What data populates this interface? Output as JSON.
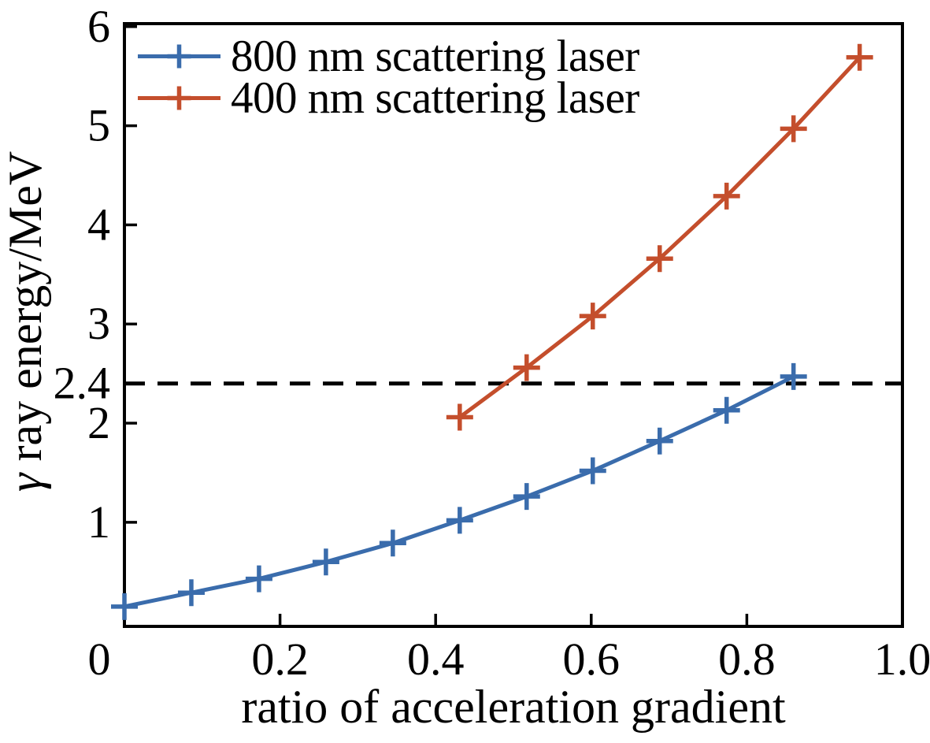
{
  "figure": {
    "background": "#ffffff",
    "frame_color": "#000000",
    "text_color": "#000000"
  },
  "chart_data": {
    "type": "line",
    "title": "",
    "xlabel": "ratio of acceleration gradient",
    "ylabel": "γ ray energy/MeV",
    "ylabel_parts": [
      "γ",
      " ray energy/MeV"
    ],
    "xlim": [
      0,
      1.0
    ],
    "ylim": [
      -0.05,
      6.03
    ],
    "x_tick_marks": [
      0.2,
      0.4,
      0.6,
      0.8
    ],
    "x_tick_labels": [
      {
        "value": 0,
        "label": "0"
      },
      {
        "value": 0.2,
        "label": "0.2"
      },
      {
        "value": 0.4,
        "label": "0.4"
      },
      {
        "value": 0.6,
        "label": "0.6"
      },
      {
        "value": 0.8,
        "label": "0.8"
      },
      {
        "value": 1.0,
        "label": "1.0"
      }
    ],
    "y_tick_marks": [
      1,
      2,
      2.4,
      3,
      4,
      5,
      6
    ],
    "y_tick_labels": [
      {
        "value": 1,
        "label": "1"
      },
      {
        "value": 2,
        "label": "2"
      },
      {
        "value": 2.4,
        "label": "2.4"
      },
      {
        "value": 3,
        "label": "3"
      },
      {
        "value": 4,
        "label": "4"
      },
      {
        "value": 5,
        "label": "5"
      },
      {
        "value": 6,
        "label": "6"
      }
    ],
    "grid": false,
    "legend_position": "upper-left",
    "legend_frame": false,
    "annotations": [
      {
        "type": "hline",
        "y": 2.4,
        "style": "dashed",
        "color": "#000000"
      }
    ],
    "series": [
      {
        "name": "800 nm scattering laser",
        "color": "#3a6cac",
        "marker": "plus",
        "x": [
          0.0,
          0.086,
          0.173,
          0.259,
          0.345,
          0.431,
          0.517,
          0.602,
          0.688,
          0.774,
          0.86
        ],
        "y": [
          0.15,
          0.29,
          0.43,
          0.6,
          0.79,
          1.02,
          1.26,
          1.52,
          1.82,
          2.13,
          2.47
        ]
      },
      {
        "name": "400 nm scattering laser",
        "color": "#c44e2c",
        "marker": "plus",
        "x": [
          0.431,
          0.517,
          0.602,
          0.688,
          0.774,
          0.86,
          0.945
        ],
        "y": [
          2.06,
          2.56,
          3.08,
          3.66,
          4.29,
          4.97,
          5.69
        ]
      }
    ]
  }
}
